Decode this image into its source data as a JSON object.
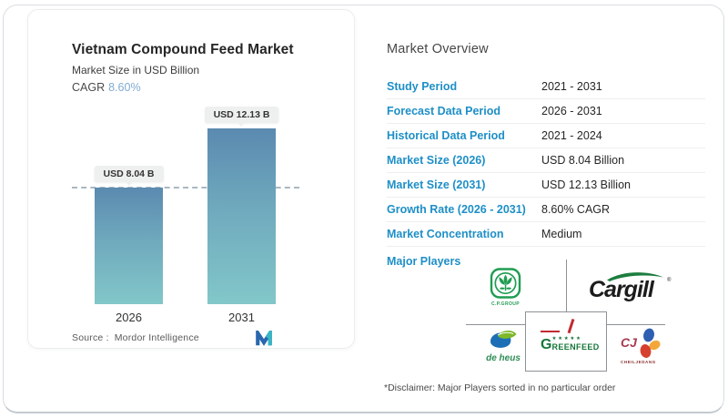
{
  "report": {
    "title": "Vietnam Compound Feed Market",
    "subtitle": "Market Size in USD Billion",
    "cagr_label": "CAGR",
    "cagr_value": "8.60%",
    "source_label": "Source :",
    "source_name": "Mordor Intelligence"
  },
  "chart_data": {
    "type": "bar",
    "title": "Vietnam Compound Feed Market",
    "ylabel": "Market Size in USD Billion",
    "unit": "USD Billion",
    "categories": [
      "2026",
      "2031"
    ],
    "values": [
      8.04,
      12.13
    ],
    "value_labels": [
      "USD 8.04 B",
      "USD 12.13 B"
    ],
    "cagr": "8.60% CAGR (2026 - 2031)",
    "ylim": [
      0,
      12.13
    ],
    "reference_line_value": 8.04,
    "grid": false,
    "legend": "none",
    "bar_gradient": [
      "#5b8ab0",
      "#82c7c9"
    ]
  },
  "overview": {
    "heading": "Market Overview",
    "rows": [
      {
        "label": "Study Period",
        "value": "2021 - 2031"
      },
      {
        "label": "Forecast Data Period",
        "value": "2026 - 2031"
      },
      {
        "label": "Historical Data Period",
        "value": "2021 - 2024"
      },
      {
        "label": "Market Size (2026)",
        "value": "USD 8.04 Billion"
      },
      {
        "label": "Market Size (2031)",
        "value": "USD 12.13 Billion"
      },
      {
        "label": "Growth Rate (2026 - 2031)",
        "value": "8.60% CAGR"
      },
      {
        "label": "Market Concentration",
        "value": "Medium"
      }
    ],
    "major_players_label": "Major Players",
    "disclaimer": "*Disclaimer: Major Players sorted in no particular order",
    "players": {
      "cp_group": {
        "name": "C.P. Group",
        "caption": "C.P.GROUP"
      },
      "cargill": {
        "name": "Cargill",
        "wordmark": "Cargill",
        "reg": "®"
      },
      "de_heus": {
        "name": "de heus",
        "wordmark": "de heus"
      },
      "greenfeed": {
        "name": "GREENFEED",
        "initial": "G",
        "rest": "REENFEED",
        "stars": "★★★★★"
      },
      "cj": {
        "name": "CJ CheilJedang",
        "wordmark": "CJ",
        "caption": "CHEILJEDANG"
      }
    }
  },
  "colors": {
    "accent_blue": "#1e8fc7",
    "cagr_blue": "#82abd3",
    "text_dark": "#262626",
    "divider": "#eeeeee"
  }
}
